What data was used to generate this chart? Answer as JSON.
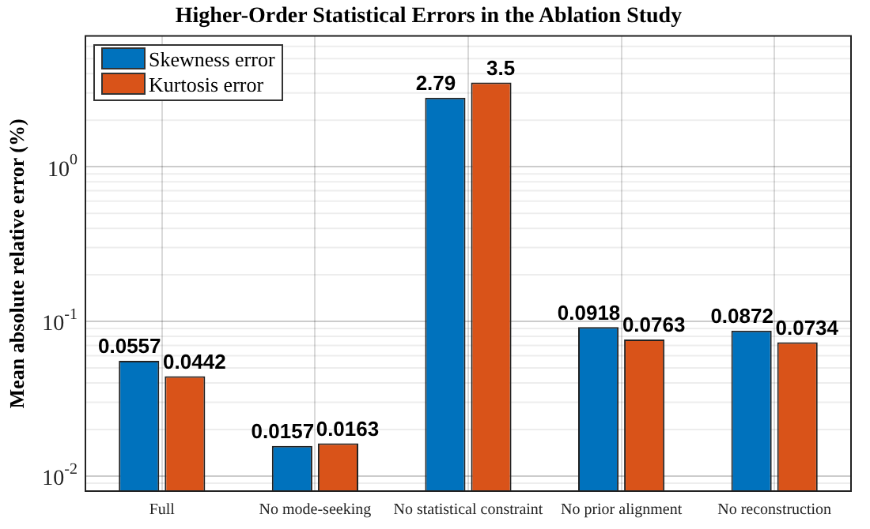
{
  "chart_data": {
    "type": "bar",
    "title": "Higher-Order Statistical Errors in the Ablation Study",
    "ylabel": "Mean absolute relative error (%)",
    "categories": [
      "Full",
      "No mode-seeking",
      "No statistical constraint",
      "No prior alignment",
      "No reconstruction"
    ],
    "series": [
      {
        "name": "Skewness error",
        "color": "#0072bd",
        "values": [
          0.0557,
          0.0157,
          2.79,
          0.0918,
          0.0872
        ]
      },
      {
        "name": "Kurtosis error",
        "color": "#d95319",
        "values": [
          0.0442,
          0.0163,
          3.5,
          0.0763,
          0.0734
        ]
      }
    ],
    "log": true,
    "ylim": [
      0.008,
      7
    ],
    "yticks": [
      {
        "value": 0.01,
        "label": "10$^{-2}$"
      },
      {
        "value": 0.1,
        "label": "10$^{-1}$"
      },
      {
        "value": 1,
        "label": "10$^{0}$"
      }
    ],
    "grid": true,
    "legend": "top left",
    "data_labels": true
  }
}
